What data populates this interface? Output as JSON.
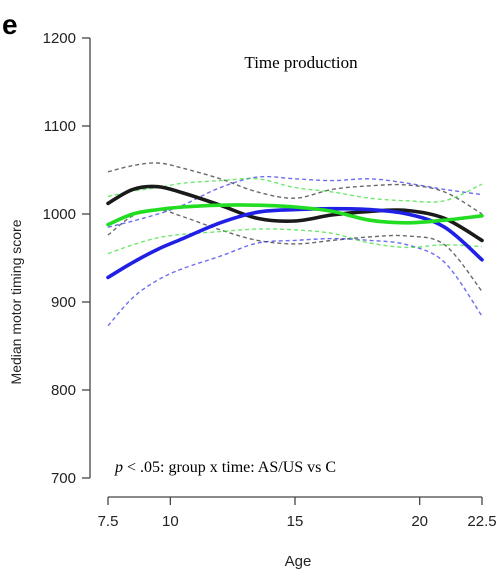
{
  "chart_data": {
    "type": "line",
    "panel_label": "e",
    "title": "Time production",
    "xlabel": "Age",
    "ylabel": "Median motor timing score",
    "xlim": [
      7.5,
      22.5
    ],
    "ylim": [
      700,
      1200
    ],
    "x_ticks": [
      7.5,
      10,
      15,
      20,
      22.5
    ],
    "x_tick_labels": [
      "7.5",
      "10",
      "15",
      "20",
      "22.5"
    ],
    "y_ticks": [
      700,
      800,
      900,
      1000,
      1100,
      1200
    ],
    "y_tick_labels": [
      "700",
      "800",
      "900",
      "1000",
      "1100",
      "1200"
    ],
    "grid": false,
    "annotation": {
      "p_symbol": "p",
      "text": " < .05: group x time: AS/US vs C"
    },
    "series": [
      {
        "color": "#1a1a1a",
        "x": [
          7.5,
          8.5,
          9.5,
          10.5,
          12,
          13.5,
          15,
          16.5,
          18,
          19.5,
          21,
          22.5
        ],
        "mean": [
          1012,
          1028,
          1031,
          1024,
          1010,
          995,
          992,
          999,
          1003,
          1004,
          995,
          970
        ],
        "upper": [
          1048,
          1055,
          1058,
          1052,
          1040,
          1025,
          1018,
          1028,
          1032,
          1033,
          1025,
          1000
        ],
        "lower": [
          976,
          998,
          1005,
          997,
          982,
          970,
          966,
          970,
          974,
          975,
          965,
          912
        ]
      },
      {
        "color": "#1f1fe6",
        "x": [
          7.5,
          8.5,
          9.5,
          10.5,
          12,
          13.5,
          15,
          16.5,
          18,
          19.5,
          21,
          22.5
        ],
        "mean": [
          928,
          945,
          960,
          972,
          990,
          1002,
          1005,
          1006,
          1005,
          1000,
          985,
          948
        ],
        "upper": [
          985,
          992,
          1000,
          1010,
          1030,
          1042,
          1040,
          1038,
          1040,
          1035,
          1028,
          1022
        ],
        "lower": [
          873,
          905,
          925,
          938,
          952,
          967,
          970,
          972,
          970,
          965,
          945,
          884
        ]
      },
      {
        "color": "#22dd22",
        "x": [
          7.5,
          8.5,
          9.5,
          10.5,
          12,
          13.5,
          15,
          16.5,
          18,
          19.5,
          21,
          22.5
        ],
        "mean": [
          988,
          1000,
          1005,
          1008,
          1010,
          1010,
          1008,
          1003,
          993,
          990,
          993,
          998
        ],
        "upper": [
          1020,
          1026,
          1030,
          1035,
          1038,
          1040,
          1030,
          1025,
          1018,
          1015,
          1015,
          1034
        ],
        "lower": [
          955,
          965,
          973,
          977,
          980,
          983,
          982,
          978,
          967,
          962,
          965,
          963
        ]
      }
    ]
  }
}
